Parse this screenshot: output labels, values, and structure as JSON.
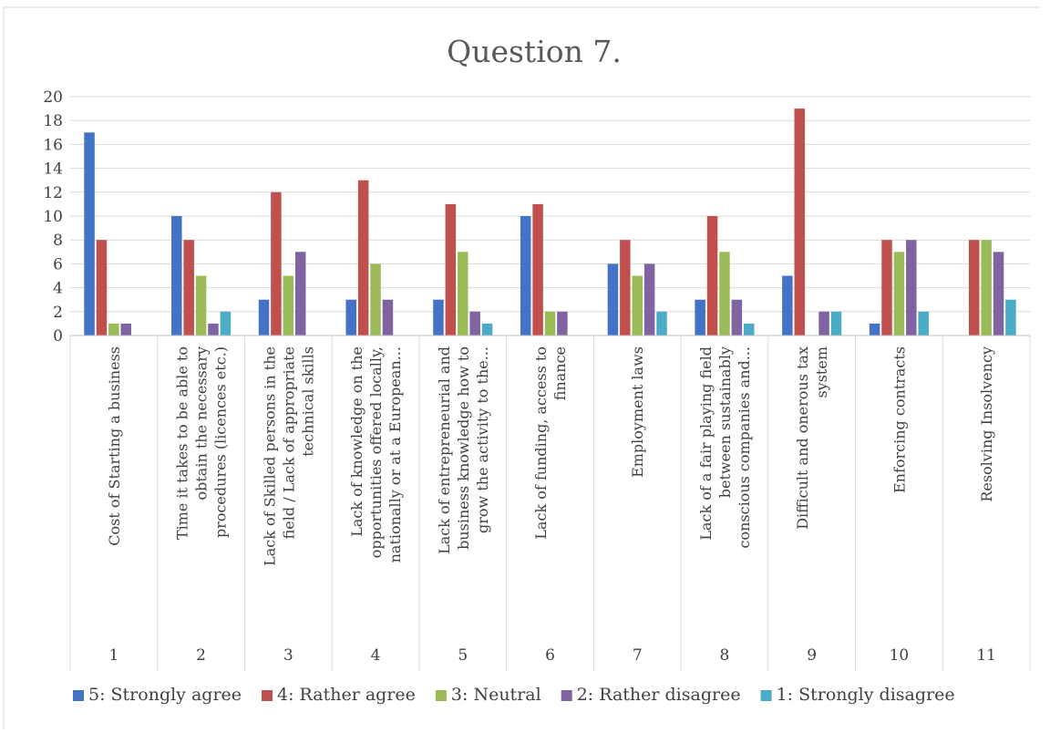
{
  "chart_data": {
    "type": "bar",
    "title": "Question 7.",
    "ylim": [
      0,
      20
    ],
    "ytick_step": 2,
    "grid": true,
    "legend_position": "bottom",
    "group_labels": [
      "1",
      "2",
      "3",
      "4",
      "5",
      "6",
      "7",
      "8",
      "9",
      "10",
      "11"
    ],
    "categories": [
      [
        "Cost of Starting a business"
      ],
      [
        "Time it takes to be able to",
        "obtain the necessary",
        "procedures (licences etc.)"
      ],
      [
        "Lack of Skilled persons in the",
        "field / Lack of appropriate",
        "technical skills"
      ],
      [
        "Lack of knowledge on the",
        "opportunities offered locally,",
        "nationally or at a European..."
      ],
      [
        "Lack of entrepreneurial and",
        "business knowledge how to",
        "grow the activity to the..."
      ],
      [
        "Lack of funding, access to",
        "finance"
      ],
      [
        "Employment laws"
      ],
      [
        "Lack of a fair playing field",
        "between sustainably",
        "conscious companies and..."
      ],
      [
        "Difficult and onerous tax",
        "system"
      ],
      [
        "Enforcing contracts"
      ],
      [
        "Resolving Insolvency"
      ]
    ],
    "series": [
      {
        "name": "5: Strongly agree",
        "color": "#4472C4",
        "values": [
          17,
          10,
          3,
          3,
          3,
          10,
          6,
          3,
          5,
          1,
          0
        ]
      },
      {
        "name": "4: Rather agree",
        "color": "#C0504D",
        "values": [
          8,
          8,
          12,
          13,
          11,
          11,
          8,
          10,
          19,
          8,
          8
        ]
      },
      {
        "name": "3: Neutral",
        "color": "#9BBB59",
        "values": [
          1,
          5,
          5,
          6,
          7,
          2,
          5,
          7,
          0,
          7,
          8
        ]
      },
      {
        "name": "2: Rather disagree",
        "color": "#8064A2",
        "values": [
          1,
          1,
          7,
          3,
          2,
          2,
          6,
          3,
          2,
          8,
          7
        ]
      },
      {
        "name": "1: Strongly disagree",
        "color": "#4BACC6",
        "values": [
          0,
          2,
          0,
          0,
          1,
          0,
          2,
          1,
          2,
          2,
          3
        ]
      }
    ]
  }
}
